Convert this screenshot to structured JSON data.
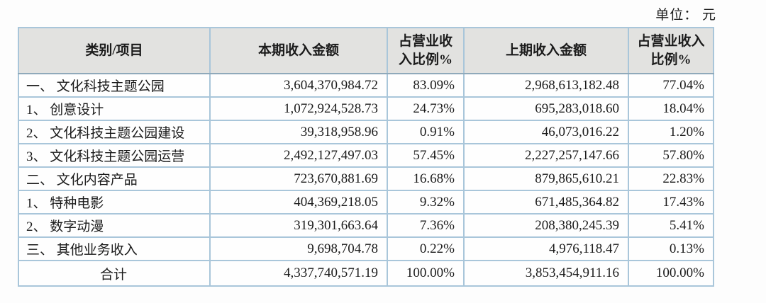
{
  "unit_label": "单位： 元",
  "table": {
    "headers": [
      "类别/项目",
      "本期收入金额",
      "占营业收入比例%",
      "上期收入金额",
      "占营业收入比例%"
    ],
    "rows": [
      {
        "category": "一、 文化科技主题公园",
        "current_amount": "3,604,370,984.72",
        "current_pct": "83.09%",
        "prior_amount": "2,968,613,182.48",
        "prior_pct": "77.04%"
      },
      {
        "category": "1、 创意设计",
        "current_amount": "1,072,924,528.73",
        "current_pct": "24.73%",
        "prior_amount": "695,283,018.60",
        "prior_pct": "18.04%"
      },
      {
        "category": "2、 文化科技主题公园建设",
        "current_amount": "39,318,958.96",
        "current_pct": "0.91%",
        "prior_amount": "46,073,016.22",
        "prior_pct": "1.20%"
      },
      {
        "category": "3、 文化科技主题公园运营",
        "current_amount": "2,492,127,497.03",
        "current_pct": "57.45%",
        "prior_amount": "2,227,257,147.66",
        "prior_pct": "57.80%"
      },
      {
        "category": "二、 文化内容产品",
        "current_amount": "723,670,881.69",
        "current_pct": "16.68%",
        "prior_amount": "879,865,610.21",
        "prior_pct": "22.83%"
      },
      {
        "category": "1、 特种电影",
        "current_amount": "404,369,218.05",
        "current_pct": "9.32%",
        "prior_amount": "671,485,364.82",
        "prior_pct": "17.43%"
      },
      {
        "category": "2、 数字动漫",
        "current_amount": "319,301,663.64",
        "current_pct": "7.36%",
        "prior_amount": "208,380,245.39",
        "prior_pct": "5.41%"
      },
      {
        "category": "三、 其他业务收入",
        "current_amount": "9,698,704.78",
        "current_pct": "0.22%",
        "prior_amount": "4,976,118.47",
        "prior_pct": "0.13%"
      },
      {
        "category": "合计",
        "current_amount": "4,337,740,571.19",
        "current_pct": "100.00%",
        "prior_amount": "3,853,454,911.16",
        "prior_pct": "100.00%",
        "is_total": true
      }
    ],
    "colors": {
      "border": "#a9c6da",
      "header_bg": "#e2e2e0",
      "text": "#1b1b1b"
    }
  }
}
